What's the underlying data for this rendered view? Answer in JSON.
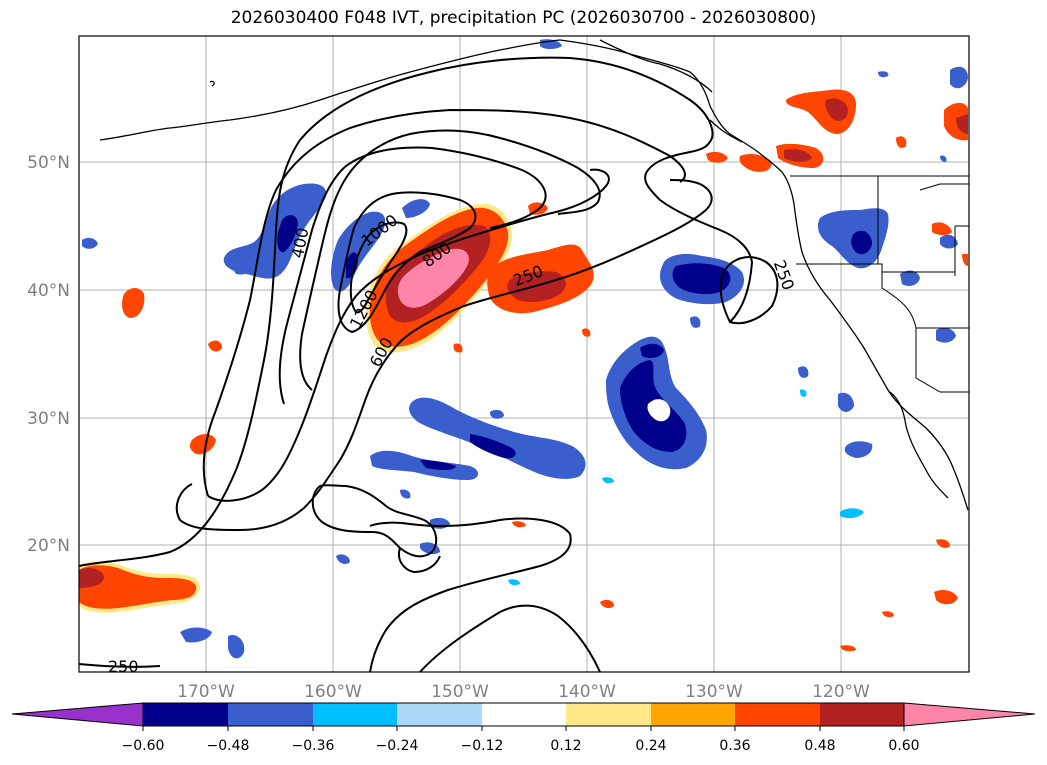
{
  "title": "2026030400 F048 IVT, precipitation PC (2026030700 - 2026030800)",
  "map": {
    "lat_labels": [
      "50°N",
      "40°N",
      "30°N",
      "20°N"
    ],
    "lon_labels": [
      "170°W",
      "160°W",
      "150°W",
      "140°W",
      "130°W",
      "120°W"
    ],
    "ivt_contour_labels": [
      "250",
      "400",
      "600",
      "800",
      "1000",
      "1200",
      "250",
      "250"
    ],
    "colors": {
      "neg_extreme": "#9932cc",
      "neg_060": "#00008b",
      "neg_048": "#3a5fcd",
      "neg_036": "#00bfff",
      "neg_024": "#add8f8",
      "neutral": "#ffffff",
      "pos_012": "#ffe88a",
      "pos_024": "#ffa500",
      "pos_036": "#ff4500",
      "pos_048": "#b22222",
      "pos_060": "#ff85a8"
    }
  },
  "colorbar": {
    "ticks": [
      "−0.60",
      "−0.48",
      "−0.36",
      "−0.24",
      "−0.12",
      "0.12",
      "0.24",
      "0.36",
      "0.48",
      "0.60"
    ],
    "colors": [
      "#9932cc",
      "#00008b",
      "#3a5fcd",
      "#00bfff",
      "#add8f8",
      "#ffffff",
      "#ffe88a",
      "#ffa500",
      "#ff4500",
      "#b22222",
      "#ff85a8"
    ]
  }
}
